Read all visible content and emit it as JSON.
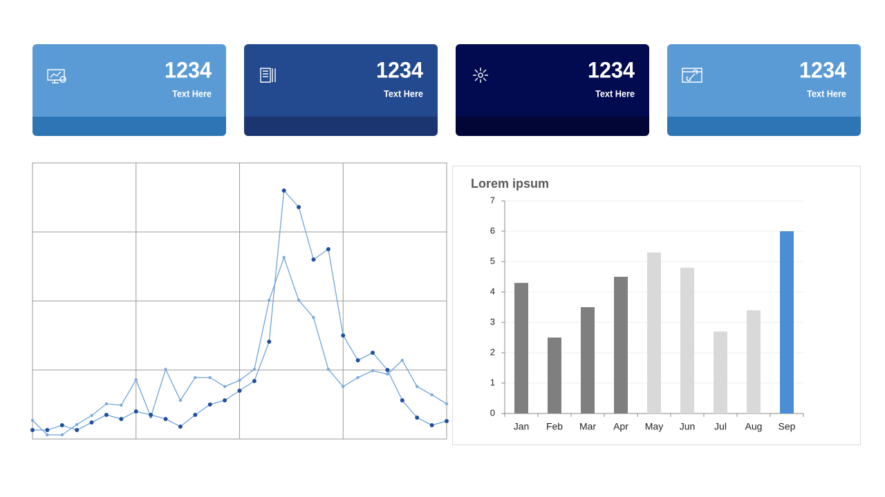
{
  "cards": [
    {
      "value": 1234,
      "label": "Text Here",
      "color": "#5b9bd5",
      "band": "#2e75b6"
    },
    {
      "value": 1234,
      "label": "Text Here",
      "color": "#23498f",
      "band": "#1b3570"
    },
    {
      "value": 1234,
      "label": "Text Here",
      "color": "#020b4f",
      "band": "#010637"
    },
    {
      "value": 1234,
      "label": "Text Here",
      "color": "#5b9bd5",
      "band": "#2e75b6"
    }
  ],
  "chart_data": [
    {
      "type": "line",
      "grid": true,
      "x": [
        0,
        1,
        2,
        3,
        4,
        5,
        6,
        7,
        8,
        9,
        10,
        11,
        12,
        13,
        14,
        15,
        16,
        17,
        18,
        19,
        20,
        21,
        22,
        23,
        24,
        25,
        26,
        27,
        28
      ],
      "xlim": [
        0,
        28
      ],
      "xticks": [
        0,
        7,
        14,
        21,
        28
      ],
      "ylim": [
        0,
        4
      ],
      "yticks": [
        0,
        1,
        2,
        3,
        4
      ],
      "series": [
        {
          "color": "#7aa9dc",
          "values": [
            0.27,
            0.06,
            0.06,
            0.21,
            0.34,
            0.51,
            0.49,
            0.86,
            0.32,
            1.01,
            0.56,
            0.89,
            0.89,
            0.76,
            0.85,
            1.01,
            2.01,
            2.63,
            2.01,
            1.76,
            1.01,
            0.76,
            0.89,
            0.99,
            0.94,
            1.14,
            0.76,
            0.64,
            0.51
          ]
        },
        {
          "color": "#1f4f9c",
          "values": [
            0.13,
            0.13,
            0.2,
            0.13,
            0.24,
            0.35,
            0.29,
            0.4,
            0.35,
            0.29,
            0.18,
            0.35,
            0.5,
            0.56,
            0.7,
            0.84,
            1.41,
            3.6,
            3.36,
            2.6,
            2.75,
            1.5,
            1.14,
            1.25,
            1.0,
            0.56,
            0.31,
            0.2,
            0.26
          ]
        }
      ]
    },
    {
      "type": "bar",
      "title": "Lorem ipsum",
      "categories": [
        "Jan",
        "Feb",
        "Mar",
        "Apr",
        "May",
        "Jun",
        "Jul",
        "Aug",
        "Sep"
      ],
      "values": [
        4.3,
        2.5,
        3.5,
        4.5,
        5.3,
        4.8,
        2.7,
        3.4,
        6
      ],
      "colors": [
        "#7f7f7f",
        "#7f7f7f",
        "#7f7f7f",
        "#7f7f7f",
        "#d9d9d9",
        "#d9d9d9",
        "#d9d9d9",
        "#d9d9d9",
        "#4a8fd6"
      ],
      "ylim": [
        0,
        7
      ],
      "yticks": [
        0,
        1,
        2,
        3,
        4,
        5,
        6,
        7
      ],
      "grid": true
    }
  ]
}
